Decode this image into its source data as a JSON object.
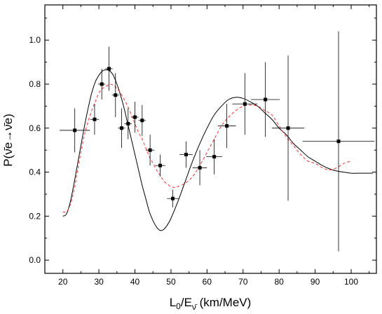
{
  "chart_data": {
    "type": "scatter",
    "xlabel_main": "L",
    "xlabel_sub": "0",
    "xlabel_mid": "/E",
    "xlabel_sub2": "ν̄",
    "xlabel_unit": " (km/MeV)",
    "ylabel": "P(ν̄e→ν̄e)",
    "xlim": [
      15,
      107
    ],
    "ylim": [
      -0.06,
      1.16
    ],
    "xticks": [
      20,
      30,
      40,
      50,
      60,
      70,
      80,
      90,
      100
    ],
    "yticks": [
      0.0,
      0.2,
      0.4,
      0.6,
      0.8,
      1.0
    ],
    "xtick_labels": [
      "20",
      "30",
      "40",
      "50",
      "60",
      "70",
      "80",
      "90",
      "100"
    ],
    "ytick_labels": [
      "0.0",
      "0.2",
      "0.4",
      "0.6",
      "0.8",
      "1.0"
    ],
    "grid": false,
    "series": [
      {
        "kind": "data-points",
        "color": "#000000",
        "points": [
          {
            "x": 23.3,
            "y": 0.59,
            "xerr": 4.2,
            "yerr": 0.1
          },
          {
            "x": 28.8,
            "y": 0.64,
            "xerr": 1.2,
            "yerr": 0.07
          },
          {
            "x": 30.8,
            "y": 0.8,
            "xerr": 1.0,
            "yerr": 0.07
          },
          {
            "x": 32.8,
            "y": 0.87,
            "xerr": 1.0,
            "yerr": 0.1
          },
          {
            "x": 34.6,
            "y": 0.75,
            "xerr": 1.0,
            "yerr": 0.1
          },
          {
            "x": 36.3,
            "y": 0.6,
            "xerr": 1.0,
            "yerr": 0.09
          },
          {
            "x": 38.1,
            "y": 0.62,
            "xerr": 1.0,
            "yerr": 0.07
          },
          {
            "x": 40.0,
            "y": 0.65,
            "xerr": 1.0,
            "yerr": 0.07
          },
          {
            "x": 42.0,
            "y": 0.635,
            "xerr": 1.0,
            "yerr": 0.07
          },
          {
            "x": 44.2,
            "y": 0.5,
            "xerr": 1.2,
            "yerr": 0.07
          },
          {
            "x": 47.0,
            "y": 0.43,
            "xerr": 1.4,
            "yerr": 0.05
          },
          {
            "x": 50.5,
            "y": 0.28,
            "xerr": 1.6,
            "yerr": 0.04
          },
          {
            "x": 54.2,
            "y": 0.48,
            "xerr": 1.8,
            "yerr": 0.06
          },
          {
            "x": 58.0,
            "y": 0.42,
            "xerr": 2.0,
            "yerr": 0.08
          },
          {
            "x": 62.0,
            "y": 0.47,
            "xerr": 2.2,
            "yerr": 0.08
          },
          {
            "x": 65.5,
            "y": 0.61,
            "xerr": 2.5,
            "yerr": 0.1
          },
          {
            "x": 70.5,
            "y": 0.71,
            "xerr": 3.5,
            "yerr": 0.14
          },
          {
            "x": 76.2,
            "y": 0.73,
            "xerr": 4.0,
            "yerr": 0.17
          },
          {
            "x": 82.5,
            "y": 0.6,
            "xerr": 4.5,
            "yerr": 0.33
          },
          {
            "x": 96.5,
            "y": 0.54,
            "xerr": 10.0,
            "yerr": 0.5
          }
        ]
      },
      {
        "kind": "best-fit",
        "style": "solid",
        "color": "#000000",
        "x": [
          20,
          21,
          22,
          23,
          24,
          25,
          26,
          27,
          28,
          29,
          30,
          31,
          32,
          33,
          34,
          35,
          36,
          37,
          38,
          39,
          40,
          41,
          42,
          43,
          44,
          45,
          46,
          47,
          48,
          49,
          50,
          52,
          54,
          56,
          58,
          60,
          62,
          64,
          66,
          68,
          70,
          72,
          74,
          76,
          78,
          80,
          82,
          84,
          86,
          88,
          90,
          92,
          94,
          96,
          98,
          100,
          102,
          104,
          106
        ],
        "y": [
          0.2,
          0.21,
          0.26,
          0.34,
          0.43,
          0.52,
          0.61,
          0.69,
          0.76,
          0.81,
          0.84,
          0.86,
          0.865,
          0.86,
          0.84,
          0.8,
          0.75,
          0.69,
          0.62,
          0.55,
          0.48,
          0.41,
          0.34,
          0.28,
          0.22,
          0.18,
          0.15,
          0.135,
          0.14,
          0.16,
          0.19,
          0.27,
          0.36,
          0.45,
          0.53,
          0.6,
          0.66,
          0.7,
          0.73,
          0.74,
          0.735,
          0.72,
          0.7,
          0.67,
          0.64,
          0.6,
          0.57,
          0.53,
          0.5,
          0.47,
          0.45,
          0.43,
          0.415,
          0.405,
          0.4,
          0.395,
          0.395,
          0.395,
          0.395
        ]
      },
      {
        "kind": "model-fit",
        "style": "dashed",
        "color": "#ff3030",
        "x": [
          20,
          21,
          22,
          23,
          24,
          25,
          26,
          27,
          28,
          29,
          30,
          31,
          32,
          33,
          34,
          35,
          36,
          37,
          38,
          39,
          40,
          41,
          42,
          43,
          44,
          45,
          46,
          47,
          48,
          49,
          50,
          51,
          52,
          54,
          56,
          58,
          60,
          62,
          64,
          66,
          68,
          70,
          72,
          74,
          76,
          78,
          80,
          82,
          84,
          86,
          88,
          90,
          92,
          94,
          96,
          98,
          100
        ],
        "y": [
          0.22,
          0.22,
          0.25,
          0.31,
          0.4,
          0.49,
          0.57,
          0.63,
          0.68,
          0.72,
          0.76,
          0.78,
          0.79,
          0.8,
          0.795,
          0.78,
          0.76,
          0.73,
          0.7,
          0.66,
          0.62,
          0.58,
          0.55,
          0.51,
          0.47,
          0.44,
          0.41,
          0.385,
          0.36,
          0.345,
          0.335,
          0.33,
          0.335,
          0.35,
          0.38,
          0.43,
          0.49,
          0.55,
          0.61,
          0.65,
          0.68,
          0.7,
          0.705,
          0.7,
          0.68,
          0.66,
          0.61,
          0.56,
          0.52,
          0.48,
          0.45,
          0.44,
          0.42,
          0.41,
          0.42,
          0.44,
          0.45
        ]
      }
    ]
  }
}
